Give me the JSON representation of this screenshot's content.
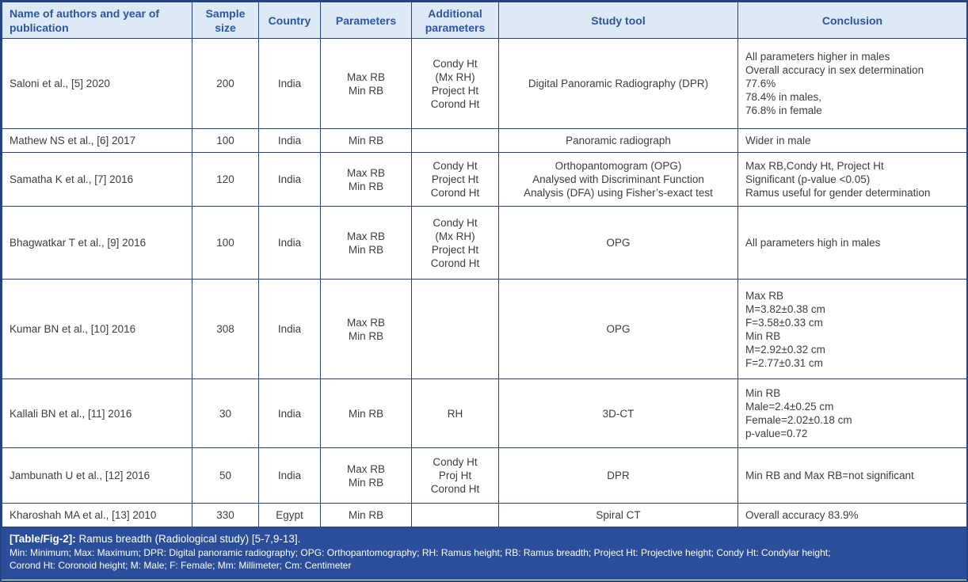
{
  "colors": {
    "header_background": "#dde9f5",
    "header_text": "#2a55a4",
    "table_border": "#26437f",
    "footer_background": "#2b4e9b",
    "footer_text": "#ffffff",
    "body_text": "#3d3d3d"
  },
  "table": {
    "columns": [
      {
        "label": "Name of authors and year of publication"
      },
      {
        "label": "Sample size"
      },
      {
        "label": "Country"
      },
      {
        "label": "Parameters"
      },
      {
        "label": "Additional parameters"
      },
      {
        "label": "Study tool"
      },
      {
        "label": "Conclusion"
      }
    ],
    "rows": [
      {
        "authors": "Saloni et al., [5] 2020",
        "sample_size": "200",
        "country": "India",
        "parameters": "Max RB\nMin RB",
        "additional_parameters": "Condy Ht\n(Mx RH)\nProject Ht\nCorond Ht",
        "study_tool": "Digital Panoramic Radiography (DPR)",
        "conclusion": "All parameters higher in males\nOverall accuracy in sex determination\n77.6%\n78.4% in males,\n76.8% in female"
      },
      {
        "authors": "Mathew NS et al., [6] 2017",
        "sample_size": "100",
        "country": "India",
        "parameters": "Min RB",
        "additional_parameters": "",
        "study_tool": "Panoramic radiograph",
        "conclusion": "Wider in male"
      },
      {
        "authors": "Samatha K et al., [7] 2016",
        "sample_size": "120",
        "country": "India",
        "parameters": "Max RB\nMin RB",
        "additional_parameters": "Condy Ht\nProject Ht\nCorond Ht",
        "study_tool": "Orthopantomogram (OPG)\nAnalysed with Discriminant Function\nAnalysis (DFA) using Fisher’s-exact test",
        "conclusion": "Max RB,Condy Ht, Project Ht\nSignificant (p-value <0.05)\nRamus useful for gender determination"
      },
      {
        "authors": "Bhagwatkar T et al., [9] 2016",
        "sample_size": "100",
        "country": "India",
        "parameters": "Max RB\nMin RB",
        "additional_parameters": "Condy Ht\n(Mx RH)\nProject Ht\nCorond Ht",
        "study_tool": "OPG",
        "conclusion": "All parameters high in males"
      },
      {
        "authors": "Kumar BN et al., [10] 2016",
        "sample_size": "308",
        "country": "India",
        "parameters": "Max RB\nMin RB",
        "additional_parameters": "",
        "study_tool": "OPG",
        "conclusion": "Max RB\nM=3.82±0.38 cm\nF=3.58±0.33 cm\nMin RB\nM=2.92±0.32 cm\nF=2.77±0.31 cm"
      },
      {
        "authors": "Kallali BN et al., [11] 2016",
        "sample_size": "30",
        "country": "India",
        "parameters": "Min RB",
        "additional_parameters": "RH",
        "study_tool": "3D-CT",
        "conclusion": "Min RB\nMale=2.4±0.25 cm\nFemale=2.02±0.18 cm\np-value=0.72"
      },
      {
        "authors": "Jambunath U et al., [12] 2016",
        "sample_size": "50",
        "country": "India",
        "parameters": "Max RB\nMin RB",
        "additional_parameters": "Condy Ht\nProj Ht\nCorond Ht",
        "study_tool": "DPR",
        "conclusion": "Min RB and Max RB=not significant"
      },
      {
        "authors": "Kharoshah MA et al., [13] 2010",
        "sample_size": "330",
        "country": "Egypt",
        "parameters": "Min RB",
        "additional_parameters": "",
        "study_tool": "Spiral CT",
        "conclusion": "Overall accuracy 83.9%"
      }
    ]
  },
  "footer": {
    "caption_label": "[Table/Fig-2]:",
    "caption_text": " Ramus breadth (Radiological study) [5-7,9-13].",
    "abbreviations_line1": "Min: Minimum; Max: Maximum; DPR: Digital panoramic radiography; OPG: Orthopantomography; RH: Ramus height; RB: Ramus breadth; Project Ht: Projective height; Condy Ht: Condylar height;",
    "abbreviations_line2": "Corond Ht: Coronoid height; M: Male; F: Female; Mm: Millimeter; Cm: Centimeter"
  }
}
